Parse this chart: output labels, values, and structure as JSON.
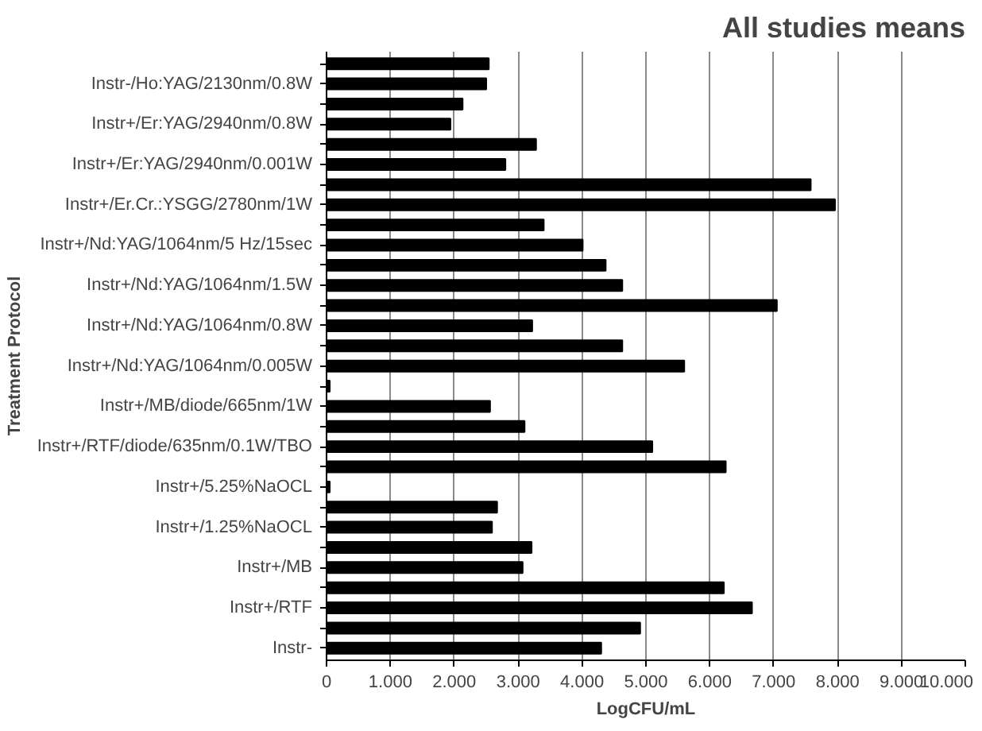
{
  "chart_data": {
    "type": "bar",
    "orientation": "horizontal",
    "title": "All studies means",
    "xlabel": "LogCFU/mL",
    "ylabel": "Treatment Protocol",
    "categories": [
      null,
      "Instr-/Ho:YAG/2130nm/0.8W",
      null,
      "Instr+/Er:YAG/2940nm/0.8W",
      null,
      "Instr+/Er:YAG/2940nm/0.001W",
      null,
      "Instr+/Er.Cr.:YSGG/2780nm/1W",
      null,
      "Instr+/Nd:YAG/1064nm/5 Hz/15sec",
      null,
      "Instr+/Nd:YAG/1064nm/1.5W",
      null,
      "Instr+/Nd:YAG/1064nm/0.8W",
      null,
      "Instr+/Nd:YAG/1064nm/0.005W",
      null,
      "Instr+/MB/diode/665nm/1W",
      null,
      "Instr+/RTF/diode/635nm/0.1W/TBO",
      null,
      "Instr+/5.25%NaOCL",
      null,
      "Instr+/1.25%NaOCL",
      null,
      "Instr+/MB",
      null,
      "Instr+/RTF",
      null,
      "Instr-"
    ],
    "values": [
      2.54,
      2.5,
      2.13,
      1.94,
      3.28,
      2.8,
      7.58,
      7.96,
      3.4,
      4.01,
      4.37,
      4.63,
      7.05,
      3.22,
      4.63,
      5.6,
      0.05,
      2.56,
      3.1,
      5.1,
      6.25,
      0.05,
      2.67,
      2.59,
      3.21,
      3.07,
      6.22,
      6.66,
      4.91,
      4.3
    ],
    "color": "#000000",
    "xlim": [
      0,
      10
    ],
    "xticks": [
      0,
      {
        "value": 1,
        "label": "1.000"
      },
      {
        "value": 2,
        "label": "2.000"
      },
      {
        "value": 3,
        "label": "3.000"
      },
      {
        "value": 4,
        "label": "4.000"
      },
      {
        "value": 5,
        "label": "5.000"
      },
      {
        "value": 6,
        "label": "6.000"
      },
      {
        "value": 7,
        "label": "7.000"
      },
      {
        "value": 8,
        "label": "8.000"
      },
      {
        "value": 9,
        "label": "9.000"
      },
      {
        "value": 10,
        "label": "10.000"
      }
    ],
    "grid": "x"
  }
}
